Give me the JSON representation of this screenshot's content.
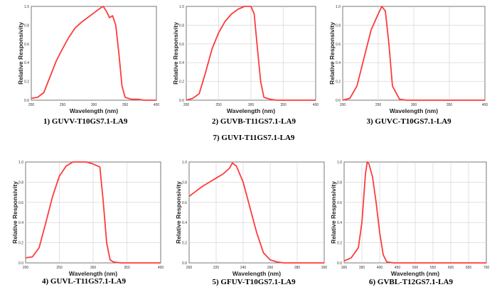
{
  "chart_data": [
    {
      "type": "line",
      "caption": "1) GUVV-T10GS7.1-LA9",
      "xlabel": "Wavelength (nm)",
      "ylabel": "Relative Responsivity",
      "xlim": [
        200,
        400
      ],
      "ylim": [
        0,
        1
      ],
      "xticks": [
        "200",
        "250",
        "300",
        "350",
        "400"
      ],
      "yticks": [
        "0.0",
        "0.2",
        "0.4",
        "0.6",
        "0.8",
        "1.0"
      ],
      "grid": false,
      "series": [
        {
          "x": [
            200,
            210,
            220,
            230,
            240,
            250,
            260,
            270,
            280,
            290,
            300,
            310,
            315,
            320,
            325,
            330,
            335,
            340,
            345,
            350,
            360,
            370,
            380,
            390,
            400
          ],
          "y": [
            0.02,
            0.03,
            0.08,
            0.25,
            0.42,
            0.55,
            0.67,
            0.77,
            0.83,
            0.88,
            0.93,
            0.98,
            1.0,
            0.95,
            0.88,
            0.9,
            0.8,
            0.5,
            0.15,
            0.03,
            0.01,
            0.01,
            0.0,
            0.0,
            0.0
          ]
        }
      ]
    },
    {
      "type": "line",
      "caption": "2) GUVB-T11GS7.1-LA9",
      "caption2": "7) GUVI-T11GS7.1-LA9",
      "xlabel": "Wavelength (nm)",
      "ylabel": "Relative Responsivity",
      "xlim": [
        200,
        400
      ],
      "ylim": [
        0,
        1
      ],
      "xticks": [
        "200",
        "250",
        "300",
        "350",
        "400"
      ],
      "yticks": [
        "0.0",
        "0.2",
        "0.4",
        "0.6",
        "0.8",
        "1.0"
      ],
      "grid": true,
      "series": [
        {
          "x": [
            200,
            210,
            220,
            230,
            240,
            250,
            260,
            270,
            280,
            290,
            300,
            305,
            310,
            315,
            320,
            330,
            340,
            360,
            380,
            400
          ],
          "y": [
            0.0,
            0.02,
            0.07,
            0.3,
            0.55,
            0.72,
            0.84,
            0.92,
            0.97,
            1.0,
            1.0,
            0.92,
            0.55,
            0.2,
            0.03,
            0.01,
            0.0,
            0.0,
            0.0,
            0.0
          ]
        }
      ]
    },
    {
      "type": "line",
      "caption": "3) GUVC-T10GS7.1-LA9",
      "xlabel": "Wavelength (nm)",
      "ylabel": "Relative Responsivity",
      "xlim": [
        200,
        400
      ],
      "ylim": [
        0,
        1
      ],
      "xticks": [
        "200",
        "250",
        "300",
        "350",
        "400"
      ],
      "yticks": [
        "0.0",
        "0.2",
        "0.4",
        "0.6",
        "0.8",
        "1.0"
      ],
      "grid": true,
      "series": [
        {
          "x": [
            200,
            210,
            220,
            230,
            240,
            250,
            255,
            260,
            265,
            270,
            280,
            290,
            300,
            350,
            400
          ],
          "y": [
            0.0,
            0.02,
            0.15,
            0.45,
            0.75,
            0.92,
            1.0,
            0.95,
            0.6,
            0.15,
            0.01,
            0.0,
            0.0,
            0.0,
            0.0
          ]
        }
      ]
    },
    {
      "type": "line",
      "caption": "4) GUVL-T11GS7.1-LA9",
      "xlabel": "Wavelength (nm)",
      "ylabel": "Relative Responsivity",
      "xlim": [
        200,
        400
      ],
      "ylim": [
        0,
        1
      ],
      "xticks": [
        "200",
        "250",
        "300",
        "350",
        "400"
      ],
      "yticks": [
        "0.0",
        "0.2",
        "0.4",
        "0.6",
        "0.8",
        "1.0"
      ],
      "grid": true,
      "series": [
        {
          "x": [
            200,
            210,
            220,
            230,
            240,
            250,
            260,
            270,
            280,
            290,
            300,
            310,
            315,
            320,
            325,
            330,
            340,
            360,
            380,
            400
          ],
          "y": [
            0.05,
            0.06,
            0.15,
            0.4,
            0.66,
            0.86,
            0.96,
            1.0,
            1.0,
            1.0,
            0.98,
            0.95,
            0.6,
            0.2,
            0.03,
            0.01,
            0.0,
            0.0,
            0.0,
            0.0
          ]
        }
      ]
    },
    {
      "type": "line",
      "caption": "5) GFUV-T10GS7.1-LA9",
      "xlabel": "Wavelength (nm)",
      "ylabel": "Relative Responsivity",
      "xlim": [
        200,
        300
      ],
      "ylim": [
        0,
        1
      ],
      "xticks": [
        "200",
        "220",
        "240",
        "260",
        "280",
        "300"
      ],
      "yticks": [
        "0.0",
        "0.2",
        "0.4",
        "0.6",
        "0.8",
        "1.0"
      ],
      "grid": true,
      "series": [
        {
          "x": [
            200,
            205,
            210,
            215,
            220,
            225,
            230,
            232,
            235,
            240,
            245,
            250,
            255,
            260,
            265,
            270,
            280,
            290,
            300
          ],
          "y": [
            0.66,
            0.71,
            0.76,
            0.8,
            0.84,
            0.88,
            0.94,
            0.99,
            0.96,
            0.8,
            0.55,
            0.3,
            0.1,
            0.03,
            0.01,
            0.0,
            0.0,
            0.0,
            0.0
          ]
        }
      ]
    },
    {
      "type": "line",
      "caption": "6) GVBL-T12GS7.1-LA9",
      "xlabel": "Wavelength (nm)",
      "ylabel": "Relative Responsivity",
      "xlim": [
        300,
        700
      ],
      "ylim": [
        0,
        1
      ],
      "xticks": [
        "300",
        "350",
        "400",
        "450",
        "500",
        "550",
        "600",
        "650",
        "700"
      ],
      "yticks": [
        "0.0",
        "0.2",
        "0.4",
        "0.6",
        "0.8",
        "1.0"
      ],
      "grid": true,
      "series": [
        {
          "x": [
            300,
            320,
            340,
            350,
            360,
            365,
            370,
            380,
            390,
            400,
            410,
            420,
            440,
            460,
            500,
            600,
            700
          ],
          "y": [
            0.02,
            0.05,
            0.15,
            0.4,
            0.88,
            1.0,
            0.98,
            0.85,
            0.6,
            0.3,
            0.08,
            0.01,
            0.0,
            0.0,
            0.0,
            0.0,
            0.0
          ]
        }
      ]
    }
  ]
}
